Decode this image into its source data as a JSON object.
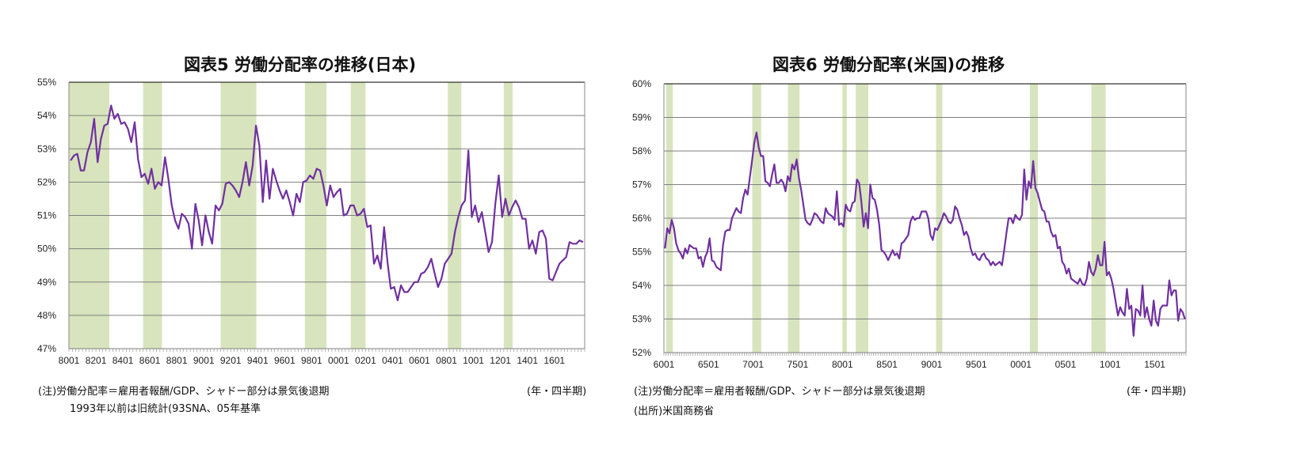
{
  "chart_data": [
    {
      "type": "line",
      "title": "図表5 労働分配率の推移(日本)",
      "xlabel": "(年・四半期)",
      "ylabel": "",
      "ylim": [
        47,
        55
      ],
      "yticks": [
        "55%",
        "54%",
        "53%",
        "52%",
        "51%",
        "50%",
        "49%",
        "48%",
        "47%"
      ],
      "xticks": [
        "8001",
        "8201",
        "8401",
        "8601",
        "8801",
        "9001",
        "9201",
        "9401",
        "9601",
        "9801",
        "0001",
        "0201",
        "0401",
        "0601",
        "0801",
        "1001",
        "1201",
        "1401",
        "1601"
      ],
      "x_start": "1980Q1",
      "grid": true,
      "shading": [
        [
          1980.0,
          1983.0
        ],
        [
          1985.5,
          1986.9
        ],
        [
          1991.25,
          1993.9
        ],
        [
          1997.5,
          1999.1
        ],
        [
          2000.9,
          2002.0
        ],
        [
          2008.1,
          2009.1
        ],
        [
          2012.25,
          2012.9
        ]
      ],
      "series": [
        {
          "name": "労働分配率",
          "color": "#7030a0",
          "values": [
            52.65,
            52.8,
            52.85,
            52.35,
            52.35,
            52.9,
            53.2,
            53.9,
            52.6,
            53.3,
            53.7,
            53.75,
            54.3,
            53.9,
            54.05,
            53.75,
            53.8,
            53.6,
            53.2,
            53.8,
            52.7,
            52.15,
            52.25,
            51.95,
            52.4,
            51.8,
            52.0,
            51.9,
            52.75,
            52.1,
            51.3,
            50.85,
            50.6,
            51.05,
            50.95,
            50.75,
            50.0,
            51.35,
            50.85,
            50.1,
            51.0,
            50.5,
            50.15,
            51.3,
            51.15,
            51.35,
            51.95,
            52.0,
            51.9,
            51.75,
            51.55,
            52.0,
            52.6,
            51.9,
            52.5,
            53.7,
            53.1,
            51.4,
            52.65,
            51.5,
            52.4,
            52.05,
            51.75,
            51.5,
            51.75,
            51.4,
            51.0,
            51.65,
            51.4,
            52.0,
            52.05,
            52.2,
            52.1,
            52.4,
            52.35,
            51.9,
            51.3,
            51.9,
            51.55,
            51.7,
            51.8,
            51.0,
            51.05,
            51.3,
            51.3,
            51.0,
            51.05,
            51.2,
            50.65,
            50.7,
            49.55,
            49.8,
            49.4,
            50.65,
            49.6,
            48.8,
            48.85,
            48.45,
            48.9,
            48.7,
            48.7,
            48.85,
            49.0,
            49.0,
            49.25,
            49.3,
            49.45,
            49.7,
            49.25,
            48.85,
            49.1,
            49.55,
            49.7,
            49.85,
            50.5,
            50.95,
            51.3,
            51.45,
            52.95,
            50.95,
            51.3,
            50.8,
            51.1,
            50.5,
            49.9,
            50.2,
            51.35,
            52.2,
            50.95,
            51.5,
            51.0,
            51.25,
            51.45,
            51.25,
            50.9,
            50.9,
            50.0,
            50.25,
            49.85,
            50.5,
            50.55,
            50.3,
            49.1,
            49.05,
            49.3,
            49.55,
            49.65,
            49.75,
            50.2,
            50.15,
            50.15,
            50.25,
            50.2
          ]
        }
      ]
    },
    {
      "type": "line",
      "title": "図表6 労働分配率(米国)の推移",
      "xlabel": "(年・四半期)",
      "ylabel": "",
      "ylim": [
        52,
        60
      ],
      "yticks": [
        "60%",
        "59%",
        "58%",
        "57%",
        "56%",
        "55%",
        "54%",
        "53%",
        "52%"
      ],
      "xticks": [
        "6001",
        "6501",
        "7001",
        "7501",
        "8001",
        "8501",
        "9001",
        "9501",
        "0001",
        "0501",
        "1001",
        "1501"
      ],
      "x_start": "1960Q1",
      "grid": true,
      "shading": [
        [
          1960.25,
          1961.0
        ],
        [
          1969.9,
          1970.9
        ],
        [
          1973.9,
          1975.2
        ],
        [
          1980.0,
          1980.5
        ],
        [
          1981.5,
          1982.9
        ],
        [
          1990.5,
          1991.2
        ],
        [
          2001.0,
          2001.9
        ],
        [
          2007.9,
          2009.5
        ]
      ],
      "series": [
        {
          "name": "労働分配率",
          "color": "#7030a0",
          "values": [
            55.1,
            55.7,
            55.55,
            55.95,
            55.7,
            55.25,
            55.05,
            54.95,
            54.8,
            55.1,
            54.95,
            55.2,
            55.15,
            55.1,
            55.1,
            54.8,
            54.85,
            54.55,
            54.85,
            55.0,
            55.4,
            54.75,
            54.7,
            54.55,
            54.5,
            54.45,
            55.2,
            55.6,
            55.65,
            55.65,
            56.0,
            56.15,
            56.3,
            56.2,
            56.15,
            56.6,
            56.85,
            56.7,
            57.2,
            57.7,
            58.25,
            58.55,
            58.1,
            57.85,
            57.85,
            57.1,
            57.05,
            56.95,
            57.3,
            57.6,
            57.05,
            57.05,
            57.15,
            57.05,
            56.8,
            57.25,
            57.1,
            57.6,
            57.45,
            57.75,
            57.2,
            56.85,
            56.4,
            55.95,
            55.85,
            55.8,
            55.95,
            56.15,
            56.1,
            56.0,
            55.9,
            55.85,
            56.3,
            56.15,
            56.1,
            56.05,
            55.95,
            56.8,
            55.8,
            55.85,
            55.75,
            56.4,
            56.25,
            56.2,
            56.45,
            56.5,
            57.15,
            57.05,
            56.5,
            55.75,
            56.15,
            55.7,
            57.0,
            56.6,
            56.55,
            56.25,
            55.8,
            55.05,
            55.0,
            54.9,
            54.75,
            54.9,
            55.05,
            54.9,
            54.95,
            54.8,
            55.25,
            55.3,
            55.4,
            55.5,
            55.9,
            56.05,
            55.95,
            56.0,
            56.0,
            56.2,
            56.2,
            56.2,
            56.0,
            55.5,
            55.35,
            55.7,
            55.65,
            55.8,
            55.95,
            56.15,
            56.05,
            55.9,
            55.85,
            55.95,
            56.35,
            56.25,
            56.0,
            55.8,
            55.5,
            55.6,
            55.45,
            55.1,
            54.9,
            54.95,
            54.8,
            54.75,
            54.9,
            54.95,
            54.8,
            54.75,
            54.6,
            54.7,
            54.6,
            54.65,
            54.7,
            54.6,
            55.05,
            55.55,
            56.0,
            56.0,
            55.85,
            56.1,
            56.0,
            55.95,
            56.1,
            57.45,
            56.55,
            57.1,
            56.9,
            57.7,
            56.9,
            56.75,
            56.5,
            56.25,
            56.2,
            55.9,
            55.9,
            55.6,
            55.45,
            55.5,
            55.1,
            55.15,
            54.7,
            54.6,
            54.35,
            54.5,
            54.2,
            54.15,
            54.1,
            54.05,
            54.2,
            54.05,
            54.0,
            54.2,
            54.7,
            54.4,
            54.3,
            54.5,
            54.9,
            54.6,
            54.6,
            55.3,
            54.3,
            54.4,
            54.2,
            53.9,
            53.5,
            53.1,
            53.35,
            53.2,
            53.1,
            53.9,
            53.3,
            53.4,
            52.5,
            53.3,
            53.25,
            53.1,
            54.0,
            53.05,
            53.35,
            53.0,
            52.8,
            53.55,
            52.95,
            52.8,
            53.3,
            53.4,
            53.4,
            53.4,
            54.15,
            53.7,
            53.85,
            53.85,
            52.95,
            53.3,
            53.2,
            53.0
          ]
        }
      ]
    }
  ],
  "notes": {
    "jp_note1": "(注)労働分配率＝雇用者報酬/GDP、シャドー部分は景気後退期",
    "jp_note2": "1993年以前は旧統計(93SNA、05年基準",
    "jp_unit": "(年・四半期)",
    "us_note1": "(注)労働分配率＝雇用者報酬/GDP、シャドー部分は景気後退期",
    "us_note2": "(出所)米国商務省",
    "us_unit": "(年・四半期)"
  },
  "colors": {
    "line": "#7030a0",
    "shade": "#d7e4bd",
    "grid": "#808080"
  }
}
